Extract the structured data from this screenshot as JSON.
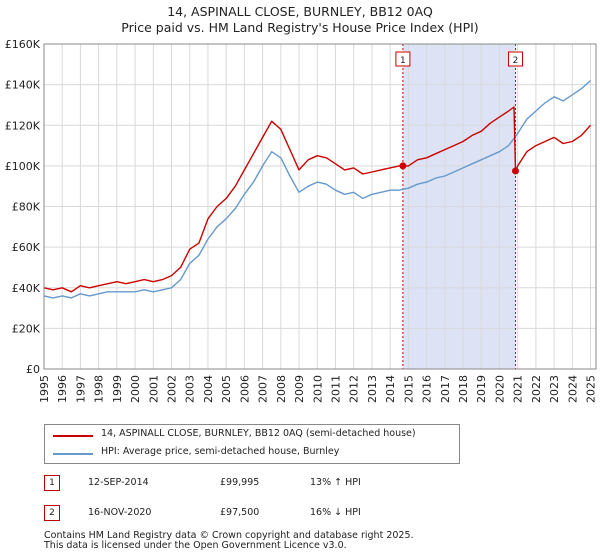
{
  "title_line1": "14, ASPINALL CLOSE, BURNLEY, BB12 0AQ",
  "title_line2": "Price paid vs. HM Land Registry's House Price Index (HPI)",
  "colors": {
    "property": "#cc0000",
    "hpi": "#6699cc",
    "shade": "#dde3f5",
    "grid": "#d9d9d9"
  },
  "legend": {
    "property_label": "14, ASPINALL CLOSE, BURNLEY, BB12 0AQ (semi-detached house)",
    "hpi_label": "HPI: Average price, semi-detached house, Burnley"
  },
  "sales": [
    {
      "num": "1",
      "date": "12-SEP-2014",
      "price": "£99,995",
      "hpi": "13% ↑ HPI"
    },
    {
      "num": "2",
      "date": "16-NOV-2020",
      "price": "£97,500",
      "hpi": "16% ↓ HPI"
    }
  ],
  "footer_line1": "Contains HM Land Registry data © Crown copyright and database right 2025.",
  "footer_line2": "This data is licensed under the Open Government Licence v3.0.",
  "chart_data": {
    "type": "line",
    "xlabel": "",
    "ylabel": "",
    "xlim": [
      1995,
      2025.3
    ],
    "ylim": [
      0,
      160000
    ],
    "y_ticks": [
      0,
      20000,
      40000,
      60000,
      80000,
      100000,
      120000,
      140000,
      160000
    ],
    "y_tick_labels": [
      "£0",
      "£20K",
      "£40K",
      "£60K",
      "£80K",
      "£100K",
      "£120K",
      "£140K",
      "£160K"
    ],
    "x_ticks": [
      1995,
      1996,
      1997,
      1998,
      1999,
      2000,
      2001,
      2002,
      2003,
      2004,
      2005,
      2006,
      2007,
      2008,
      2009,
      2010,
      2011,
      2012,
      2013,
      2014,
      2015,
      2016,
      2017,
      2018,
      2019,
      2020,
      2021,
      2022,
      2023,
      2024,
      2025
    ],
    "x_tick_labels": [
      "1995",
      "1996",
      "1997",
      "1998",
      "1999",
      "2000",
      "2001",
      "2002",
      "2003",
      "2004",
      "2005",
      "2006",
      "2007",
      "2008",
      "2009",
      "2010",
      "2011",
      "2012",
      "2013",
      "2014",
      "2015",
      "2016",
      "2017",
      "2018",
      "2019",
      "2020",
      "2021",
      "2022",
      "2023",
      "2024",
      "2025"
    ],
    "grid": true,
    "shaded_range": [
      2014.7,
      2020.88
    ],
    "markers": [
      {
        "label": "1",
        "x": 2014.7,
        "y": 99995
      },
      {
        "label": "2",
        "x": 2020.88,
        "y": 97500
      }
    ],
    "series": [
      {
        "name": "14, ASPINALL CLOSE, BURNLEY, BB12 0AQ (semi-detached house)",
        "color": "#cc0000",
        "x": [
          1995,
          1995.5,
          1996,
          1996.5,
          1997,
          1997.5,
          1998,
          1998.5,
          1999,
          1999.5,
          2000,
          2000.5,
          2001,
          2001.5,
          2002,
          2002.5,
          2003,
          2003.5,
          2004,
          2004.5,
          2005,
          2005.5,
          2006,
          2006.5,
          2007,
          2007.5,
          2008,
          2008.5,
          2009,
          2009.5,
          2010,
          2010.5,
          2011,
          2011.5,
          2012,
          2012.5,
          2013,
          2013.5,
          2014,
          2014.5,
          2014.7,
          2015,
          2015.5,
          2016,
          2016.5,
          2017,
          2017.5,
          2018,
          2018.5,
          2019,
          2019.5,
          2020,
          2020.5,
          2020.8,
          2020.88,
          2021,
          2021.5,
          2022,
          2022.5,
          2023,
          2023.5,
          2024,
          2024.5,
          2025
        ],
        "y": [
          40000,
          39000,
          40000,
          38000,
          41000,
          40000,
          41000,
          42000,
          43000,
          42000,
          43000,
          44000,
          43000,
          44000,
          46000,
          50000,
          59000,
          62000,
          74000,
          80000,
          84000,
          90000,
          98000,
          106000,
          114000,
          122000,
          118000,
          108000,
          98000,
          103000,
          105000,
          104000,
          101000,
          98000,
          99000,
          96000,
          97000,
          98000,
          99000,
          100000,
          99995,
          100000,
          103000,
          104000,
          106000,
          108000,
          110000,
          112000,
          115000,
          117000,
          121000,
          124000,
          127000,
          129000,
          97500,
          100000,
          107000,
          110000,
          112000,
          114000,
          111000,
          112000,
          115000,
          120000
        ]
      },
      {
        "name": "HPI: Average price, semi-detached house, Burnley",
        "color": "#6699cc",
        "x": [
          1995,
          1995.5,
          1996,
          1996.5,
          1997,
          1997.5,
          1998,
          1998.5,
          1999,
          1999.5,
          2000,
          2000.5,
          2001,
          2001.5,
          2002,
          2002.5,
          2003,
          2003.5,
          2004,
          2004.5,
          2005,
          2005.5,
          2006,
          2006.5,
          2007,
          2007.5,
          2008,
          2008.5,
          2009,
          2009.5,
          2010,
          2010.5,
          2011,
          2011.5,
          2012,
          2012.5,
          2013,
          2013.5,
          2014,
          2014.5,
          2015,
          2015.5,
          2016,
          2016.5,
          2017,
          2017.5,
          2018,
          2018.5,
          2019,
          2019.5,
          2020,
          2020.5,
          2021,
          2021.5,
          2022,
          2022.5,
          2023,
          2023.5,
          2024,
          2024.5,
          2025
        ],
        "y": [
          36000,
          35000,
          36000,
          35000,
          37000,
          36000,
          37000,
          38000,
          38000,
          38000,
          38000,
          39000,
          38000,
          39000,
          40000,
          44000,
          52000,
          56000,
          64000,
          70000,
          74000,
          79000,
          86000,
          92000,
          100000,
          107000,
          104000,
          95000,
          87000,
          90000,
          92000,
          91000,
          88000,
          86000,
          87000,
          84000,
          86000,
          87000,
          88000,
          88000,
          89000,
          91000,
          92000,
          94000,
          95000,
          97000,
          99000,
          101000,
          103000,
          105000,
          107000,
          110000,
          116000,
          123000,
          127000,
          131000,
          134000,
          132000,
          135000,
          138000,
          142000
        ]
      }
    ]
  }
}
